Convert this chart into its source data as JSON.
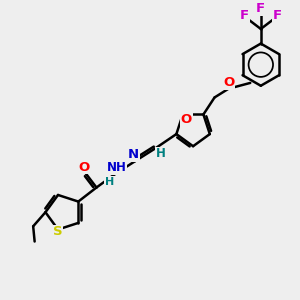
{
  "bg_color": "#eeeeee",
  "bond_color": "#000000",
  "bond_width": 1.8,
  "atom_colors": {
    "O": "#ff0000",
    "N": "#0000cd",
    "S": "#cccc00",
    "F": "#cc00cc",
    "H_teal": "#008080",
    "C": "#000000"
  },
  "font_size": 8.5,
  "fig_width": 3.0,
  "fig_height": 3.0,
  "dpi": 100,
  "xlim": [
    0,
    10
  ],
  "ylim": [
    0,
    10
  ]
}
